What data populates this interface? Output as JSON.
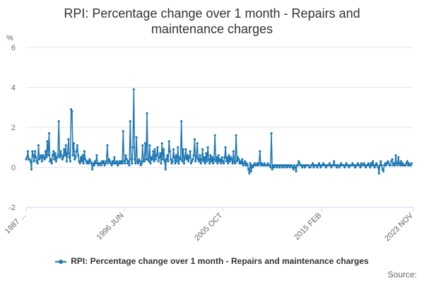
{
  "colors": {
    "series": "#1f78b4",
    "grid": "#e6e6e6",
    "text": "#666666"
  },
  "source_label": "Source:",
  "chart_data": {
    "type": "line",
    "title_lines": [
      "RPI: Percentage change over 1 month - Repairs and",
      "maintenance charges"
    ],
    "unit_label": "%",
    "ylim": [
      -2,
      6
    ],
    "y_ticks": [
      6,
      4,
      2,
      0,
      -2
    ],
    "x_tick_labels": [
      "1987 ...",
      "1996 JUN",
      "2005 OCT",
      "2015 FEB",
      "2023 NOV"
    ],
    "x_tick_positions": [
      0,
      111,
      223,
      335,
      439
    ],
    "legend_position": "bottom-center",
    "grid": true,
    "series": [
      {
        "name": "RPI: Percentage change over 1 month - Repairs and maintenance charges",
        "x_start_month_index": 0,
        "values": [
          0.4,
          0.5,
          0.8,
          0.4,
          0.4,
          0.3,
          -0.1,
          0.8,
          0.6,
          0.3,
          0.8,
          0.5,
          0.3,
          0.2,
          1.1,
          0.4,
          0.5,
          0.6,
          0.3,
          0.6,
          0.5,
          0.4,
          0.8,
          0.5,
          1.3,
          0.6,
          1.7,
          0.3,
          0.4,
          0.2,
          0.6,
          0.8,
          0.4,
          0.7,
          0.3,
          0.5,
          0.6,
          2.3,
          0.5,
          0.8,
          0.6,
          0.4,
          0.5,
          0.9,
          0.6,
          1.1,
          0.3,
          0.7,
          1.4,
          0.5,
          0.3,
          2.9,
          2.8,
          0.6,
          1.2,
          0.4,
          0.5,
          0.8,
          1.1,
          0.6,
          0.3,
          0.2,
          0.5,
          0.3,
          0.6,
          0.2,
          0.8,
          0.4,
          0.3,
          0.2,
          0.3,
          0.2,
          0.4,
          0.3,
          0.2,
          -0.1,
          0.2,
          0.1,
          0.3,
          0.2,
          0.6,
          0.2,
          0.1,
          0.2,
          0.2,
          0.1,
          0.3,
          0.2,
          0.3,
          0.1,
          0.2,
          0.3,
          1.1,
          0.2,
          0.4,
          0.3,
          0.2,
          0.1,
          0.3,
          0.2,
          0.5,
          0.2,
          0.2,
          0.3,
          0.1,
          0.2,
          0.3,
          0.2,
          0.3,
          0.2,
          1.8,
          0.3,
          0.2,
          0.6,
          0.4,
          0.2,
          0.3,
          0.1,
          2.3,
          0.4,
          0.2,
          1.0,
          3.9,
          0.4,
          0.2,
          1.5,
          0.3,
          0.2,
          0.4,
          0.3,
          0.1,
          0.2,
          1.1,
          0.3,
          0.3,
          1.2,
          0.4,
          2.7,
          0.4,
          0.3,
          1.1,
          0.2,
          0.5,
          0.4,
          0.8,
          0.3,
          0.9,
          0.4,
          0.6,
          1.0,
          0.3,
          0.5,
          0.7,
          0.2,
          1.2,
          0.4,
          0.9,
          0.3,
          -0.1,
          0.4,
          0.6,
          0.3,
          1.3,
          0.8,
          0.4,
          0.2,
          0.3,
          0.9,
          0.5,
          0.2,
          0.6,
          0.3,
          1.0,
          0.2,
          0.5,
          0.4,
          2.3,
          0.3,
          0.9,
          0.2,
          0.5,
          0.9,
          0.4,
          0.6,
          0.3,
          0.5,
          0.8,
          0.2,
          0.3,
          0.4,
          0.6,
          1.4,
          0.3,
          0.5,
          1.2,
          0.4,
          0.3,
          0.6,
          0.2,
          0.4,
          0.9,
          0.3,
          0.5,
          0.2,
          0.7,
          0.3,
          1.0,
          0.4,
          0.2,
          0.6,
          0.3,
          0.5,
          0.2,
          0.4,
          1.6,
          0.3,
          0.5,
          0.2,
          0.6,
          0.3,
          0.4,
          0.2,
          0.5,
          0.3,
          0.2,
          0.5,
          1.0,
          0.3,
          0.5,
          0.2,
          0.6,
          0.3,
          0.5,
          0.4,
          0.2,
          0.8,
          0.3,
          0.2,
          1.6,
          0.3,
          0.5,
          0.4,
          0.2,
          0.3,
          0.2,
          0.4,
          0.1,
          0.2,
          0.3,
          0.1,
          0.2,
          0.1,
          -0.1,
          -0.3,
          0.2,
          -0.2,
          0.1,
          0.0,
          0.1,
          0.2,
          0.1,
          0.1,
          0.2,
          0.1,
          0.2,
          0.8,
          0.1,
          0.2,
          0.1,
          0.1,
          0.2,
          0.1,
          0.1,
          0.1,
          0.2,
          0.1,
          0.1,
          0.0,
          1.7,
          -0.1,
          0.1,
          0.0,
          0.1,
          0.1,
          0.0,
          0.1,
          0.1,
          0.0,
          0.1,
          0.1,
          0.0,
          0.1,
          0.1,
          0.0,
          0.1,
          0.1,
          0.0,
          0.1,
          0.1,
          0.0,
          0.1,
          0.1,
          0.0,
          -0.1,
          0.1,
          0.0,
          -0.2,
          0.1,
          0.1,
          0.3,
          0.2,
          0.1,
          0.1,
          0.0,
          0.1,
          0.1,
          0.0,
          0.1,
          0.1,
          0.1,
          0.1,
          0.0,
          0.0,
          0.1,
          0.1,
          0.2,
          0.0,
          0.1,
          0.1,
          0.1,
          0.0,
          0.1,
          0.2,
          0.1,
          0.0,
          0.1,
          0.1,
          0.2,
          0.1,
          0.1,
          0.0,
          0.1,
          0.1,
          0.1,
          0.2,
          0.1,
          0.0,
          0.1,
          0.1,
          0.3,
          0.1,
          0.1,
          0.0,
          0.1,
          0.1,
          0.0,
          0.1,
          0.2,
          0.1,
          0.1,
          0.1,
          0.0,
          0.1,
          0.2,
          0.1,
          0.1,
          0.0,
          0.1,
          0.1,
          0.1,
          0.2,
          0.1,
          0.1,
          0.0,
          0.1,
          0.1,
          0.2,
          0.1,
          0.1,
          0.0,
          0.2,
          0.1,
          0.1,
          0.2,
          0.1,
          0.0,
          0.1,
          0.1,
          0.2,
          0.1,
          0.0,
          0.2,
          0.1,
          0.3,
          0.1,
          0.0,
          0.1,
          0.2,
          0.1,
          0.0,
          -0.3,
          0.1,
          0.3,
          0.1,
          -0.1,
          -0.2,
          0.1,
          0.2,
          0.1,
          0.2,
          0.3,
          0.2,
          0.1,
          0.1,
          0.3,
          0.4,
          0.1,
          0.2,
          0.1,
          0.6,
          0.2,
          0.1,
          0.5,
          0.2,
          0.1,
          0.3,
          0.1,
          0.2,
          0.1,
          0.1,
          0.1,
          0.2,
          0.3,
          0.1,
          0.2,
          0.1,
          0.1,
          0.2
        ]
      }
    ]
  }
}
